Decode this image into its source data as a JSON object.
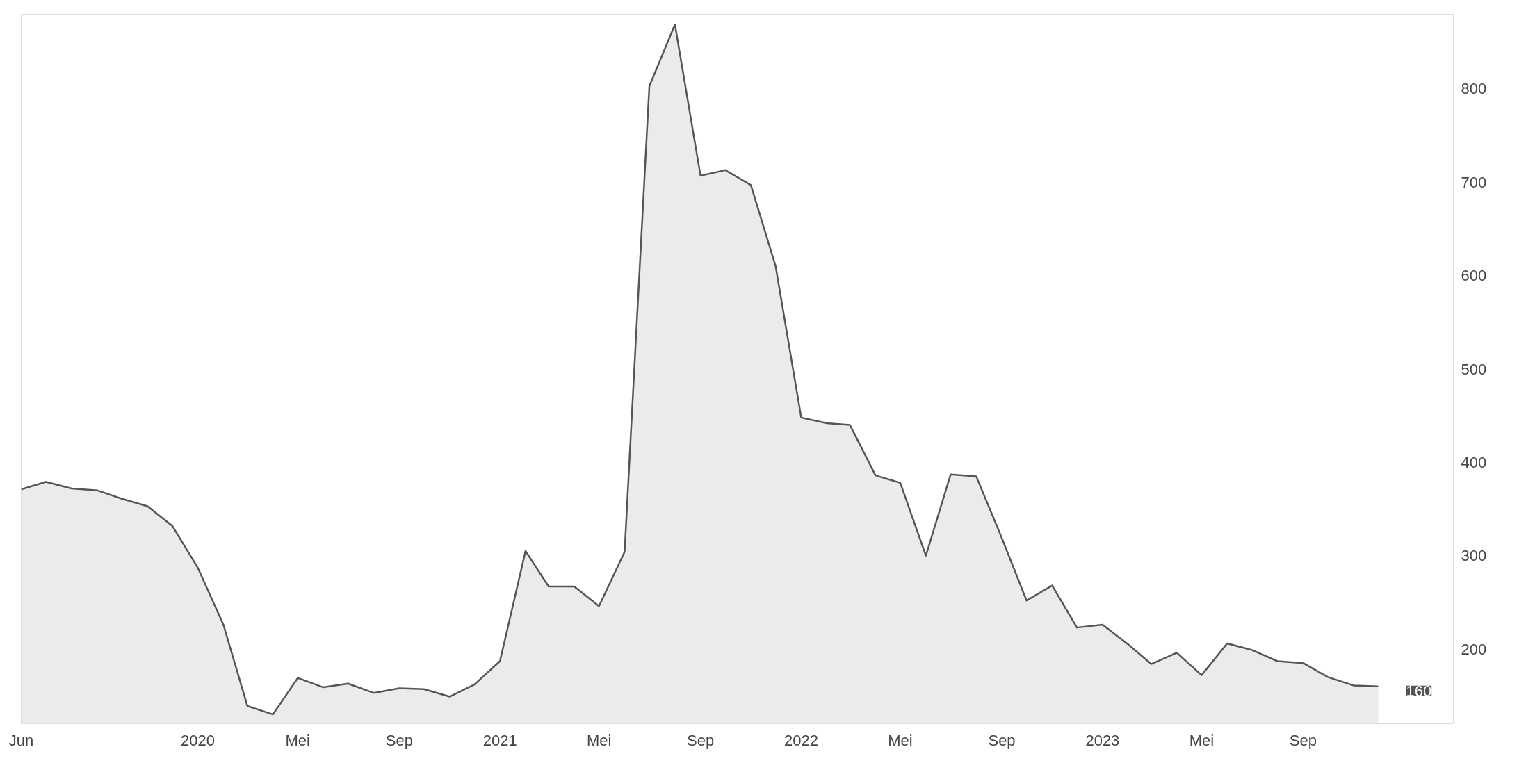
{
  "chart_data": {
    "type": "area",
    "x": [
      "2019-06",
      "2019-07",
      "2019-08",
      "2019-09",
      "2019-10",
      "2019-11",
      "2019-12",
      "2020-01",
      "2020-02",
      "2020-03",
      "2020-04",
      "2020-05",
      "2020-06",
      "2020-07",
      "2020-08",
      "2020-09",
      "2020-10",
      "2020-11",
      "2020-12",
      "2021-01",
      "2021-02",
      "2021-03",
      "2021-04",
      "2021-05",
      "2021-06",
      "2021-07",
      "2021-08",
      "2021-09",
      "2021-10",
      "2021-11",
      "2021-12",
      "2022-01",
      "2022-02",
      "2022-03",
      "2022-04",
      "2022-05",
      "2022-06",
      "2022-07",
      "2022-08",
      "2022-09",
      "2022-10",
      "2022-11",
      "2022-12",
      "2023-01",
      "2023-02",
      "2023-03",
      "2023-04",
      "2023-05",
      "2023-06",
      "2023-07",
      "2023-08",
      "2023-09",
      "2023-10",
      "2023-11",
      "2023-12"
    ],
    "series": [
      {
        "color": "#555555",
        "values": [
          371,
          379,
          372,
          370,
          361,
          353,
          332,
          287,
          226,
          139,
          130,
          169,
          159,
          163,
          153,
          158,
          157,
          149,
          162,
          187,
          305,
          267,
          267,
          246,
          304,
          803,
          869,
          707,
          713,
          697,
          610,
          448,
          442,
          440,
          386,
          378,
          300,
          387,
          385,
          319,
          252,
          268,
          223,
          226,
          205,
          184,
          196,
          172,
          206,
          199,
          187,
          185,
          170,
          161,
          160
        ]
      }
    ],
    "xlim": [
      "2019-06",
      "2024-03"
    ],
    "ylim": [
      120,
      880
    ],
    "yticks": [
      200,
      300,
      400,
      500,
      600,
      700,
      800
    ],
    "xticks": [
      {
        "value": "2019-06",
        "label": "Jun"
      },
      {
        "value": "2020-01",
        "label": "2020"
      },
      {
        "value": "2020-05",
        "label": "Mei"
      },
      {
        "value": "2020-09",
        "label": "Sep"
      },
      {
        "value": "2021-01",
        "label": "2021"
      },
      {
        "value": "2021-05",
        "label": "Mei"
      },
      {
        "value": "2021-09",
        "label": "Sep"
      },
      {
        "value": "2022-01",
        "label": "2022"
      },
      {
        "value": "2022-05",
        "label": "Mei"
      },
      {
        "value": "2022-09",
        "label": "Sep"
      },
      {
        "value": "2023-01",
        "label": "2023"
      },
      {
        "value": "2023-05",
        "label": "Mei"
      },
      {
        "value": "2023-09",
        "label": "Sep"
      }
    ],
    "annotations": [
      {
        "text": "160",
        "x": "2023-12",
        "y": 160
      }
    ],
    "grid": false
  }
}
